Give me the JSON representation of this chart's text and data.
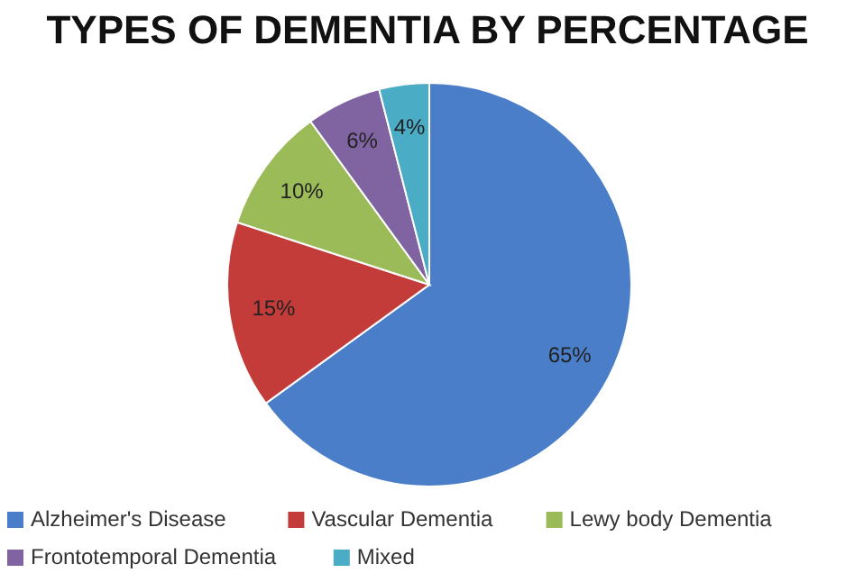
{
  "chart_data": {
    "type": "pie",
    "title": "TYPES OF DEMENTIA BY PERCENTAGE",
    "categories": [
      "Alzheimer's Disease",
      "Vascular Dementia",
      "Lewy body Dementia",
      "Frontotemporal Dementia",
      "Mixed"
    ],
    "values": [
      65,
      15,
      10,
      6,
      4
    ],
    "colors": [
      "#4a7ec8",
      "#c43c3a",
      "#9bbb59",
      "#8064a2",
      "#4bacc6"
    ],
    "value_labels": [
      "65%",
      "15%",
      "10%",
      "6%",
      "4%"
    ],
    "legend": "bottom"
  }
}
